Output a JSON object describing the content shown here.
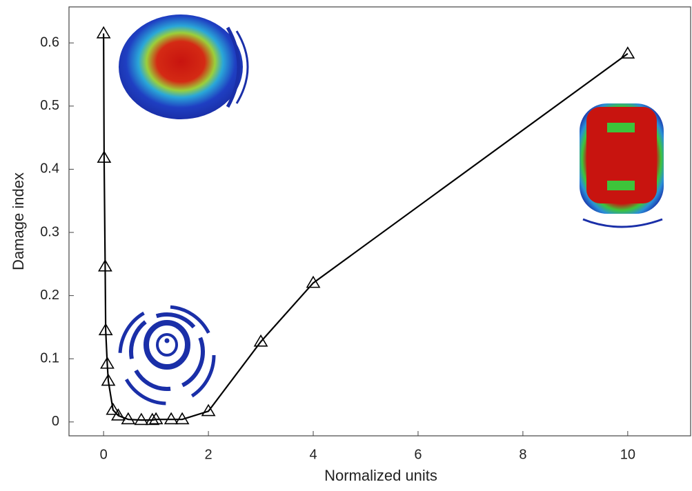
{
  "chart_data": {
    "type": "line",
    "x_label": "Normalized units",
    "y_label": "Damage index",
    "x": [
      0,
      0.01,
      0.03,
      0.04,
      0.07,
      0.09,
      0.18,
      0.28,
      0.47,
      0.72,
      0.93,
      1.0,
      1.29,
      1.5,
      2,
      3,
      4,
      10
    ],
    "series": [
      {
        "color": "#000000",
        "values": [
          0.615,
          0.418,
          0.246,
          0.145,
          0.092,
          0.065,
          0.019,
          0.01,
          0.004,
          0.003,
          0.003,
          0.004,
          0.004,
          0.004,
          0.017,
          0.127,
          0.22,
          0.583
        ]
      }
    ],
    "xlim": [
      -0.66,
      11.2
    ],
    "ylim": [
      -0.022,
      0.657
    ],
    "xticks": [
      0,
      2,
      4,
      6,
      8,
      10
    ],
    "yticks": [
      0,
      0.1,
      0.2,
      0.3,
      0.4,
      0.5,
      0.6
    ]
  }
}
